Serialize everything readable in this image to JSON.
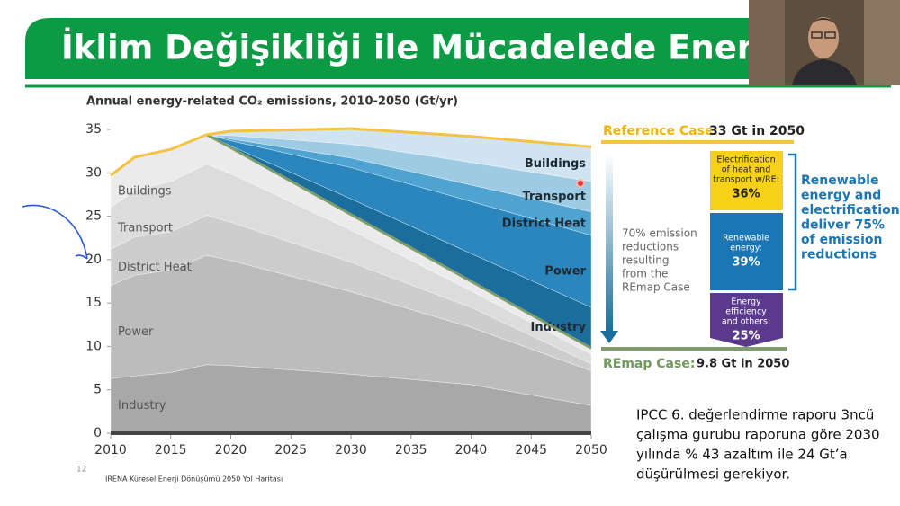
{
  "slide": {
    "title": "İklim Değişikliği ile Mücadelede Enerjini R",
    "page_number": "12",
    "source": "IRENA Küresel Enerji Dönüşümü 2050 Yol Haritası",
    "note": [
      "IPCC 6. değerlendirme raporu 3ncü",
      "çalışma gurubu raporuna göre 2030",
      "yılında % 43 azaltım ile 24 Gt’a",
      "düşürülmesi gerekiyor."
    ]
  },
  "chart_data": {
    "type": "area",
    "stacked": true,
    "title": "Annual energy-related CO₂ emissions, 2010-2050 (Gt/yr)",
    "x": [
      2010,
      2012,
      2015,
      2018,
      2020,
      2030,
      2040,
      2050
    ],
    "xlim": [
      2010,
      2050
    ],
    "xticks": [
      2010,
      2015,
      2020,
      2025,
      2030,
      2035,
      2040,
      2045,
      2050
    ],
    "ylim": [
      0,
      35
    ],
    "yticks": [
      0,
      5,
      10,
      15,
      20,
      25,
      30,
      35
    ],
    "series": [
      {
        "name": "Industry",
        "color": "#a8a8a8",
        "values": [
          6.3,
          6.6,
          7.0,
          7.9,
          7.8,
          6.8,
          5.6,
          3.2
        ]
      },
      {
        "name": "Power",
        "color": "#bcbcbc",
        "values": [
          10.7,
          11.6,
          11.8,
          12.6,
          12.1,
          9.5,
          6.6,
          4.0
        ]
      },
      {
        "name": "District Heat",
        "color": "#cdcdcd",
        "values": [
          4.2,
          4.4,
          4.4,
          4.6,
          4.4,
          3.4,
          2.3,
          0.8
        ]
      },
      {
        "name": "Transport",
        "color": "#dcdcdc",
        "values": [
          4.8,
          5.4,
          5.8,
          5.9,
          5.6,
          3.7,
          1.9,
          1.1
        ]
      },
      {
        "name": "Buildings",
        "color": "#ebebeb",
        "values": [
          3.7,
          3.8,
          3.7,
          3.4,
          3.0,
          1.8,
          1.1,
          0.7
        ]
      },
      {
        "name": "Industry",
        "color": "#1b6d9c",
        "values": [
          null,
          null,
          null,
          0,
          0.2,
          1.8,
          3.2,
          4.7
        ]
      },
      {
        "name": "Power",
        "color": "#2a86bd",
        "values": [
          null,
          null,
          null,
          0,
          0.6,
          3.6,
          6.0,
          8.3
        ]
      },
      {
        "name": "District Heat",
        "color": "#4fa3d0",
        "values": [
          null,
          null,
          null,
          0,
          0.2,
          1.1,
          1.9,
          2.7
        ]
      },
      {
        "name": "Transport",
        "color": "#9dcbe4",
        "values": [
          null,
          null,
          null,
          0,
          0.4,
          1.6,
          2.6,
          3.5
        ]
      },
      {
        "name": "Buildings",
        "color": "#cfe4f0",
        "values": [
          null,
          null,
          null,
          0,
          0.5,
          1.8,
          3.0,
          4.0
        ]
      }
    ],
    "reference": {
      "color": "#f5c242",
      "values": [
        29.7,
        31.8,
        32.7,
        34.4,
        34.8,
        35.1,
        34.2,
        33.0
      ]
    },
    "remap": {
      "color": "#7f9c6d",
      "values": [
        null,
        null,
        null,
        34.4,
        32.9,
        25.2,
        17.5,
        9.8
      ]
    },
    "annotations": {
      "reference_label": "Reference Case:",
      "reference_value": "33 Gt in 2050",
      "remap_label": "REmap Case:",
      "remap_value": "9.8 Gt in 2050",
      "reduction_note": [
        "70% emission",
        "reductions",
        "resulting",
        "from the",
        "REmap Case"
      ],
      "boxes": [
        {
          "lines": [
            "Electrification",
            "of heat and",
            "transport w/RE:"
          ],
          "value": "36%"
        },
        {
          "lines": [
            "Renewable",
            "energy:"
          ],
          "value": "39%"
        },
        {
          "lines": [
            "Energy",
            "efficiency",
            "and others:"
          ],
          "value": "25%"
        }
      ],
      "summary": [
        "Renewable",
        "energy and",
        "electrification",
        "deliver 75%",
        "of emission",
        "reductions"
      ]
    }
  }
}
